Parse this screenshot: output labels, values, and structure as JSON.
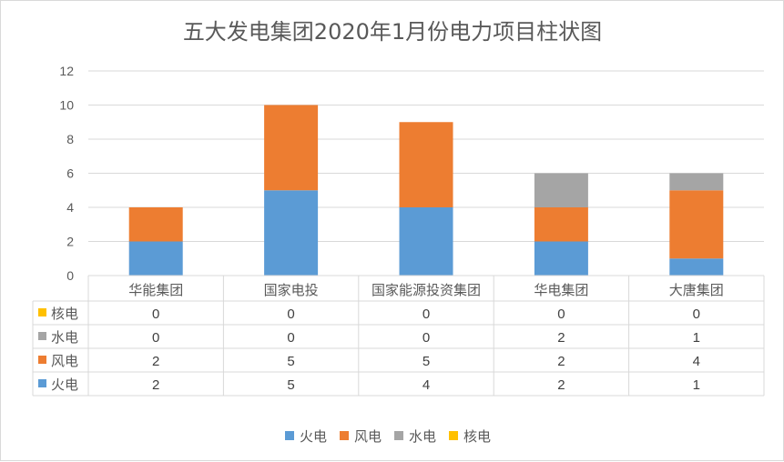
{
  "chart_data": {
    "type": "bar",
    "stacked": true,
    "title": "五大发电集团2020年1月份电力项目柱状图",
    "categories": [
      "华能集团",
      "国家电投",
      "国家能源投资集团",
      "华电集团",
      "大唐集团"
    ],
    "ylim": [
      0,
      12
    ],
    "yticks": [
      0,
      2,
      4,
      6,
      8,
      10,
      12
    ],
    "grid": true,
    "data_table": true,
    "legend_position": "bottom",
    "series": [
      {
        "name": "火电",
        "color": "#5b9bd5",
        "values": [
          2,
          5,
          4,
          2,
          1
        ]
      },
      {
        "name": "风电",
        "color": "#ed7d31",
        "values": [
          2,
          5,
          5,
          2,
          4
        ]
      },
      {
        "name": "水电",
        "color": "#a5a5a5",
        "values": [
          0,
          0,
          0,
          2,
          1
        ]
      },
      {
        "name": "核电",
        "color": "#ffc000",
        "values": [
          0,
          0,
          0,
          0,
          0
        ]
      }
    ]
  }
}
